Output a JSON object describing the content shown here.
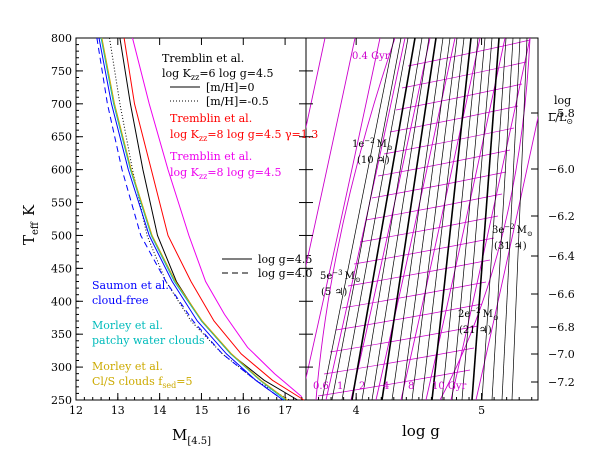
{
  "chart_data": [
    {
      "type": "line",
      "ylabel_main": "T",
      "ylabel_sub": "eff",
      "ylabel_unit": "K",
      "xlabel_main": "M",
      "xlabel_sub": "[4.5]",
      "xlim": [
        12,
        17.5
      ],
      "ylim": [
        250,
        800
      ],
      "xticks": [
        "12",
        "13",
        "14",
        "15",
        "16",
        "17"
      ],
      "yticks": [
        "250",
        "300",
        "350",
        "400",
        "450",
        "500",
        "550",
        "600",
        "650",
        "700",
        "750",
        "800"
      ],
      "series": [
        {
          "color": "#000000",
          "dash": "solid",
          "x": [
            13.05,
            13.3,
            13.6,
            13.95,
            14.4,
            15.0,
            15.7,
            16.5,
            17.3
          ],
          "y": [
            800,
            700,
            600,
            500,
            430,
            370,
            320,
            280,
            250
          ]
        },
        {
          "color": "#000000",
          "dash": "dot",
          "x": [
            12.8,
            13.05,
            13.35,
            13.7,
            14.15,
            14.75,
            15.5,
            16.3,
            17.1
          ],
          "y": [
            800,
            700,
            600,
            500,
            430,
            370,
            320,
            280,
            250
          ]
        },
        {
          "color": "#ff0000",
          "dash": "solid",
          "x": [
            13.15,
            13.4,
            13.8,
            14.2,
            14.75,
            15.3,
            15.95,
            16.7,
            17.45
          ],
          "y": [
            800,
            700,
            600,
            500,
            430,
            370,
            320,
            280,
            250
          ]
        },
        {
          "color": "#ee00ee",
          "dash": "solid",
          "x": [
            13.35,
            13.75,
            14.2,
            14.7,
            15.1,
            15.55,
            16.1,
            16.75,
            17.4
          ],
          "y": [
            800,
            700,
            600,
            500,
            430,
            380,
            330,
            290,
            255
          ]
        },
        {
          "color": "#0000ff",
          "dash": "solid",
          "x": [
            12.55,
            12.85,
            13.25,
            13.75,
            14.3,
            14.9,
            15.6,
            16.3,
            16.95
          ],
          "y": [
            800,
            700,
            600,
            500,
            430,
            370,
            320,
            280,
            250
          ]
        },
        {
          "color": "#0000ff",
          "dash": "dash",
          "x": [
            12.5,
            12.75,
            13.1,
            13.55,
            14.15,
            14.8,
            15.5,
            16.3,
            16.95
          ],
          "y": [
            800,
            700,
            600,
            500,
            430,
            370,
            320,
            280,
            250
          ]
        },
        {
          "color": "#00bbbb",
          "dash": "solid",
          "x": [
            12.6,
            12.9,
            13.3,
            13.8,
            14.35,
            15.0,
            15.7,
            16.4,
            17.0
          ],
          "y": [
            800,
            700,
            600,
            500,
            430,
            370,
            320,
            280,
            250
          ]
        },
        {
          "color": "#ccaa00",
          "dash": "solid",
          "x": [
            12.62,
            12.92,
            13.32,
            13.82,
            14.38,
            15.02,
            15.72,
            16.42,
            17.05
          ],
          "y": [
            800,
            700,
            600,
            500,
            430,
            370,
            320,
            280,
            250
          ]
        }
      ],
      "annotations": {
        "tremblin_black": "Tremblin et al.",
        "tremblin_black_params_a": "log K",
        "tremblin_black_params_sub": "zz",
        "tremblin_black_params_b": "=6 log g=4.5",
        "legend_mh0": "[m/H]=0",
        "legend_mh05": "[m/H]=-0.5",
        "tremblin_red": "Tremblin et al.",
        "tremblin_red_params_a": "log K",
        "tremblin_red_params_sub": "zz",
        "tremblin_red_params_b": "=8 log g=4.5 γ=1.3",
        "tremblin_mag": "Tremblin et al.",
        "tremblin_mag_params_a": "log K",
        "tremblin_mag_params_sub": "zz",
        "tremblin_mag_params_b": "=8 log g=4.5",
        "legend_g45": "log g=4.5",
        "legend_g40": "log g=4.0",
        "saumon_1": "Saumon et al.",
        "saumon_2": "cloud-free",
        "morley_w1": "Morley et al.",
        "morley_w2": "patchy water clouds",
        "morley_c1": "Morley et al.",
        "morley_c2_a": "Cl/S clouds f",
        "morley_c2_sub": "sed",
        "morley_c2_b": "=5"
      }
    },
    {
      "type": "line",
      "xlabel": "log g",
      "xlim": [
        3.6,
        5.45
      ],
      "ylim": [
        250,
        800
      ],
      "xticks": [
        "4",
        "5"
      ],
      "right_ylabel_1": "log",
      "right_ylabel_2_a": "L/L",
      "right_ylabel_2_sub": "⊙",
      "right_ticks": [
        "−5.8",
        "−6.0",
        "−6.2",
        "−6.4",
        "−6.6",
        "−6.8",
        "−7.0",
        "−7.2"
      ],
      "age_labels": [
        "0.4 Gyr",
        "0.6",
        "1",
        "2",
        "4",
        "8",
        "10 Gyr"
      ],
      "mass_labels": [
        {
          "m": "1e",
          "exp": "−2",
          "unit": "M",
          "sun": "⊙",
          "j": "(10 ♃)"
        },
        {
          "m": "3e",
          "exp": "−2",
          "unit": "M",
          "sun": "⊙",
          "j": "(31 ♃)"
        },
        {
          "m": "5e",
          "exp": "−3",
          "unit": "M",
          "sun": "⊙",
          "j": "(5 ♃)"
        },
        {
          "m": "2e",
          "exp": "−2",
          "unit": "M",
          "sun": "⊙",
          "j": "(21 ♃)"
        }
      ]
    }
  ]
}
